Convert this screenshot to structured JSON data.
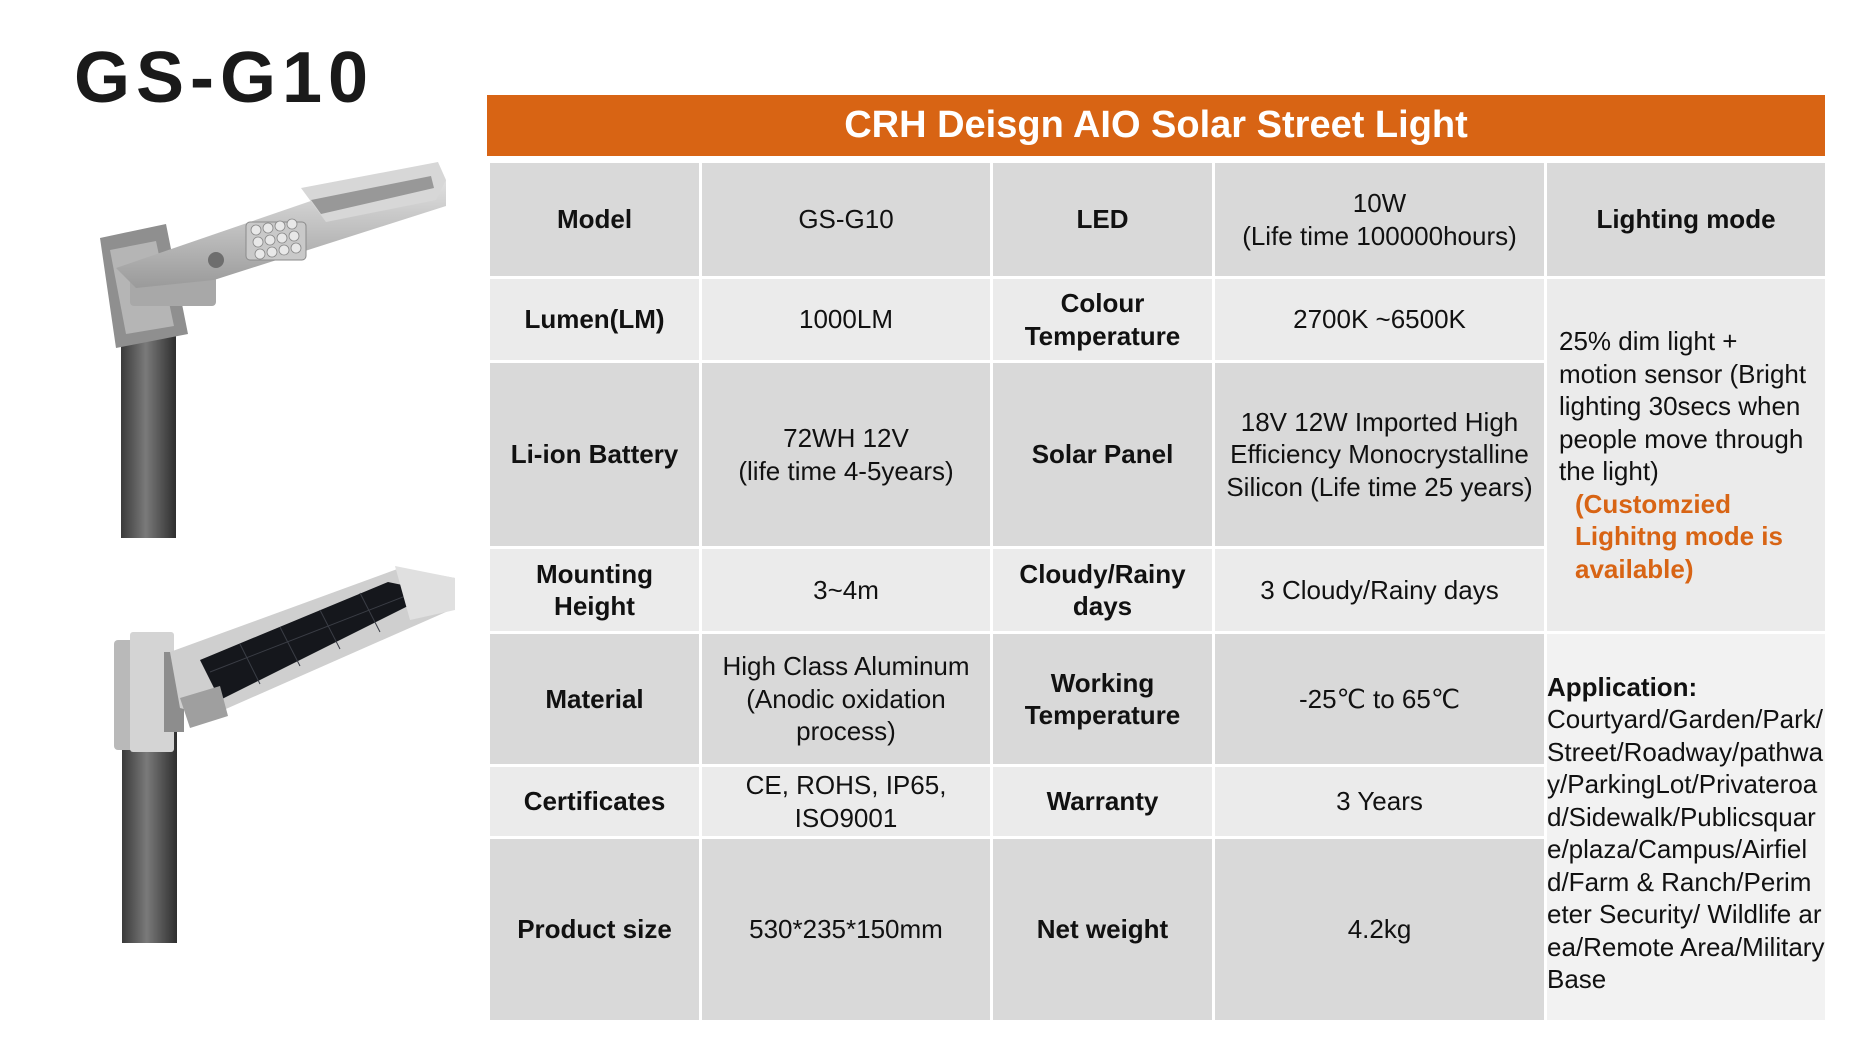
{
  "page": {
    "product_title": "GS-G10",
    "banner": "CRH Deisgn AIO Solar Street Light"
  },
  "colors": {
    "accent": "#D86414",
    "cell_dark": "#d9d9d9",
    "cell_light": "#ebebeb"
  },
  "table": {
    "rows": [
      {
        "label1": "Model",
        "value1": "GS-G10",
        "label2": "LED",
        "value2": "10W\n(Life time 100000hours)"
      },
      {
        "label1": "Lumen(LM)",
        "value1": "1000LM",
        "label2": "Colour\nTemperature",
        "value2": "2700K ~6500K"
      },
      {
        "label1": "Li-ion Battery",
        "value1": "72WH 12V\n(life time 4-5years)",
        "label2": "Solar Panel",
        "value2": "18V 12W Imported High Efficiency Monocrystalline Silicon (Life time 25 years)"
      },
      {
        "label1": "Mounting\nHeight",
        "value1": "3~4m",
        "label2": "Cloudy/Rainy\ndays",
        "value2": "3 Cloudy/Rainy days"
      },
      {
        "label1": "Material",
        "value1": "High Class Aluminum (Anodic oxidation process)",
        "label2": "Working\nTemperature",
        "value2": "-25℃ to 65℃"
      },
      {
        "label1": "Certificates",
        "value1": "CE, ROHS, IP65, ISO9001",
        "label2": "Warranty",
        "value2": "3 Years"
      },
      {
        "label1": "Product size",
        "value1": "530*235*150mm",
        "label2": "Net weight",
        "value2": "4.2kg"
      }
    ],
    "lighting_mode": {
      "header": "Lighting mode",
      "description": "25% dim light + motion sensor (Bright lighting 30secs when people move through the light)",
      "highlight": "(Customzied Lighitng mode is available)"
    },
    "application": {
      "title": "Application:",
      "text": "Courtyard/Garden/Park/Street/Roadway/pathway/ParkingLot/Privateroad/Sidewalk/Publicsquare/plaza/Campus/Airfield/Farm & Ranch/Perimeter Security/ Wildlife area/Remote Area/Military Base"
    }
  },
  "images": {
    "top": "solar-street-light-front-icon",
    "bottom": "solar-street-light-panel-icon"
  }
}
